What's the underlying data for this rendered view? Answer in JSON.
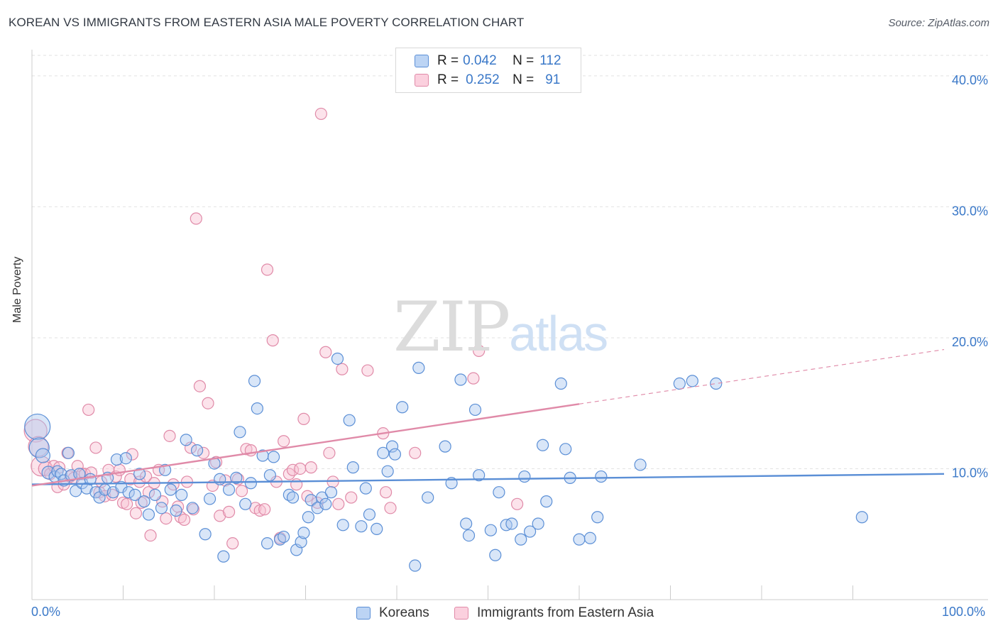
{
  "title": "KOREAN VS IMMIGRANTS FROM EASTERN ASIA MALE POVERTY CORRELATION CHART",
  "source": "Source: ZipAtlas.com",
  "watermark": {
    "zip": "ZIP",
    "atlas": "atlas"
  },
  "legend": {
    "r_label": "R =",
    "n_label": "N =",
    "rows": [
      {
        "r": "0.042",
        "n": "112",
        "fill": "#aac8f0",
        "stroke": "#5b8fd6"
      },
      {
        "r": "0.252",
        "n": "91",
        "fill": "#f8c0d2",
        "stroke": "#e08aa8"
      }
    ]
  },
  "bottom_legend": [
    "Koreans",
    "Immigrants from Eastern Asia"
  ],
  "chart_data": {
    "type": "scatter",
    "title": "KOREAN VS IMMIGRANTS FROM EASTERN ASIA MALE POVERTY CORRELATION CHART",
    "xlabel": "",
    "ylabel": "Male Poverty",
    "xlim": [
      0,
      100
    ],
    "ylim": [
      0,
      42
    ],
    "x_tick_labels": [
      "0.0%",
      "100.0%"
    ],
    "y_ticks": [
      10,
      20,
      30,
      40
    ],
    "y_tick_labels": [
      "10.0%",
      "20.0%",
      "30.0%",
      "40.0%"
    ],
    "grid": true,
    "legend_position": "top-center",
    "series": [
      {
        "name": "Koreans",
        "color": "#5b8fd6",
        "fill": "#aac8f0",
        "r": 0.042,
        "n": 112,
        "trend": {
          "x0": 0,
          "y0": 8.8,
          "x1": 100,
          "y1": 9.6,
          "dashed_from": 100
        },
        "points": [
          [
            0.6,
            13.2,
            18
          ],
          [
            0.8,
            11.6,
            14
          ],
          [
            1.2,
            11.0,
            10
          ],
          [
            1.8,
            9.7,
            9
          ],
          [
            2.5,
            9.4,
            8
          ],
          [
            2.8,
            9.8,
            8
          ],
          [
            3.2,
            9.6,
            8
          ],
          [
            3.5,
            9.1,
            8
          ],
          [
            4.0,
            11.2,
            8
          ],
          [
            4.3,
            9.5,
            8
          ],
          [
            4.8,
            8.3,
            8
          ],
          [
            5.2,
            9.6,
            8
          ],
          [
            5.5,
            8.9,
            8
          ],
          [
            6.0,
            8.5,
            8
          ],
          [
            6.4,
            9.2,
            8
          ],
          [
            7.0,
            8.2,
            8
          ],
          [
            7.4,
            7.8,
            8
          ],
          [
            8.0,
            8.4,
            8
          ],
          [
            8.3,
            9.3,
            8
          ],
          [
            8.9,
            8.2,
            8
          ],
          [
            9.3,
            10.7,
            8
          ],
          [
            9.8,
            8.6,
            8
          ],
          [
            10.3,
            10.8,
            8
          ],
          [
            10.6,
            8.2,
            8
          ],
          [
            11.3,
            8.0,
            8
          ],
          [
            11.8,
            9.6,
            8
          ],
          [
            12.3,
            7.5,
            8
          ],
          [
            12.8,
            6.5,
            8
          ],
          [
            13.5,
            8.0,
            8
          ],
          [
            14.2,
            7.0,
            8
          ],
          [
            14.6,
            9.9,
            8
          ],
          [
            15.2,
            8.4,
            8
          ],
          [
            15.8,
            6.8,
            8
          ],
          [
            16.4,
            8.0,
            8
          ],
          [
            16.9,
            12.2,
            8
          ],
          [
            17.6,
            7.0,
            8
          ],
          [
            18.1,
            11.4,
            8
          ],
          [
            19.0,
            5.0,
            8
          ],
          [
            19.5,
            7.7,
            8
          ],
          [
            20.0,
            10.4,
            8
          ],
          [
            20.6,
            9.2,
            8
          ],
          [
            21.0,
            3.3,
            8
          ],
          [
            21.6,
            8.4,
            8
          ],
          [
            22.4,
            9.3,
            8
          ],
          [
            22.8,
            12.8,
            8
          ],
          [
            23.4,
            7.3,
            8
          ],
          [
            24.0,
            8.9,
            8
          ],
          [
            24.4,
            16.7,
            8
          ],
          [
            24.7,
            14.6,
            8
          ],
          [
            25.3,
            11.0,
            8
          ],
          [
            25.8,
            4.3,
            8
          ],
          [
            26.1,
            9.5,
            8
          ],
          [
            26.5,
            10.9,
            8
          ],
          [
            27.2,
            4.6,
            8
          ],
          [
            27.6,
            4.8,
            8
          ],
          [
            28.2,
            8.0,
            8
          ],
          [
            28.6,
            7.8,
            8
          ],
          [
            29.0,
            3.8,
            8
          ],
          [
            29.5,
            4.4,
            8
          ],
          [
            29.8,
            5.1,
            8
          ],
          [
            30.3,
            6.3,
            8
          ],
          [
            30.6,
            7.6,
            8
          ],
          [
            31.3,
            7.0,
            8
          ],
          [
            31.8,
            7.8,
            8
          ],
          [
            32.2,
            7.3,
            8
          ],
          [
            32.8,
            8.2,
            8
          ],
          [
            33.5,
            18.4,
            8
          ],
          [
            34.1,
            5.7,
            8
          ],
          [
            34.8,
            13.7,
            8
          ],
          [
            35.2,
            10.1,
            8
          ],
          [
            36.1,
            5.6,
            8
          ],
          [
            36.6,
            8.5,
            8
          ],
          [
            37.0,
            6.5,
            8
          ],
          [
            37.8,
            5.4,
            8
          ],
          [
            38.5,
            11.2,
            8
          ],
          [
            39.0,
            9.8,
            8
          ],
          [
            39.5,
            11.7,
            8
          ],
          [
            39.8,
            11.1,
            8
          ],
          [
            40.6,
            14.7,
            8
          ],
          [
            42.0,
            2.6,
            8
          ],
          [
            42.4,
            17.7,
            8
          ],
          [
            43.4,
            7.8,
            8
          ],
          [
            45.3,
            11.7,
            8
          ],
          [
            46.0,
            8.9,
            8
          ],
          [
            47.0,
            16.8,
            8
          ],
          [
            47.6,
            5.8,
            8
          ],
          [
            47.9,
            4.9,
            8
          ],
          [
            48.6,
            14.5,
            8
          ],
          [
            49.0,
            9.5,
            8
          ],
          [
            50.3,
            5.3,
            8
          ],
          [
            50.8,
            3.4,
            8
          ],
          [
            51.2,
            8.2,
            8
          ],
          [
            52.0,
            5.7,
            8
          ],
          [
            52.6,
            5.8,
            8
          ],
          [
            53.6,
            4.6,
            8
          ],
          [
            54.0,
            9.4,
            8
          ],
          [
            54.6,
            5.2,
            8
          ],
          [
            55.5,
            5.8,
            8
          ],
          [
            56.0,
            11.8,
            8
          ],
          [
            56.4,
            7.5,
            8
          ],
          [
            58.0,
            16.5,
            8
          ],
          [
            58.5,
            11.5,
            8
          ],
          [
            59.0,
            9.3,
            8
          ],
          [
            60.0,
            4.6,
            8
          ],
          [
            61.2,
            4.7,
            8
          ],
          [
            62.0,
            6.3,
            8
          ],
          [
            62.4,
            9.4,
            8
          ],
          [
            66.7,
            10.3,
            8
          ],
          [
            71.0,
            16.5,
            8
          ],
          [
            72.4,
            16.7,
            8
          ],
          [
            75.0,
            16.5,
            8
          ],
          [
            91.0,
            6.3,
            8
          ]
        ]
      },
      {
        "name": "Immigrants from Eastern Asia",
        "color": "#e08aa8",
        "fill": "#f8c0d2",
        "r": 0.252,
        "n": 91,
        "trend": {
          "x0": 0,
          "y0": 8.7,
          "x1": 100,
          "y1": 19.1,
          "dashed_from": 60
        },
        "points": [
          [
            0.4,
            12.9,
            16
          ],
          [
            0.7,
            11.7,
            14
          ],
          [
            1.0,
            10.2,
            14
          ],
          [
            1.5,
            10.0,
            10
          ],
          [
            2.0,
            9.6,
            8
          ],
          [
            2.4,
            10.2,
            8
          ],
          [
            2.8,
            8.6,
            8
          ],
          [
            3.0,
            10.1,
            8
          ],
          [
            3.5,
            8.8,
            8
          ],
          [
            3.9,
            11.2,
            8
          ],
          [
            4.2,
            9.4,
            8
          ],
          [
            4.6,
            9.3,
            8
          ],
          [
            5.0,
            10.2,
            8
          ],
          [
            5.5,
            9.6,
            8
          ],
          [
            5.8,
            9.6,
            8
          ],
          [
            6.2,
            14.5,
            8
          ],
          [
            6.5,
            9.7,
            8
          ],
          [
            7.0,
            11.6,
            8
          ],
          [
            7.4,
            8.2,
            8
          ],
          [
            7.6,
            9.0,
            8
          ],
          [
            8.0,
            7.9,
            8
          ],
          [
            8.4,
            9.9,
            8
          ],
          [
            8.8,
            8.0,
            8
          ],
          [
            9.2,
            9.4,
            8
          ],
          [
            9.6,
            9.9,
            8
          ],
          [
            10.0,
            7.4,
            8
          ],
          [
            10.4,
            7.3,
            8
          ],
          [
            10.8,
            9.2,
            8
          ],
          [
            11.0,
            11.1,
            8
          ],
          [
            11.4,
            6.6,
            8
          ],
          [
            11.8,
            9.0,
            8
          ],
          [
            12.0,
            7.4,
            8
          ],
          [
            12.5,
            9.4,
            8
          ],
          [
            12.8,
            8.2,
            8
          ],
          [
            13.0,
            4.9,
            8
          ],
          [
            13.4,
            8.9,
            8
          ],
          [
            13.9,
            9.9,
            8
          ],
          [
            14.3,
            7.5,
            8
          ],
          [
            14.7,
            6.2,
            8
          ],
          [
            15.1,
            12.5,
            8
          ],
          [
            15.5,
            8.8,
            8
          ],
          [
            16.0,
            7.1,
            8
          ],
          [
            16.3,
            6.3,
            8
          ],
          [
            16.7,
            6.1,
            8
          ],
          [
            17.0,
            9.0,
            8
          ],
          [
            17.4,
            11.6,
            8
          ],
          [
            17.7,
            6.9,
            8
          ],
          [
            18.0,
            29.1,
            8
          ],
          [
            18.4,
            16.3,
            8
          ],
          [
            18.8,
            11.2,
            8
          ],
          [
            19.3,
            15.0,
            8
          ],
          [
            19.8,
            8.7,
            8
          ],
          [
            20.2,
            10.5,
            8
          ],
          [
            20.6,
            6.4,
            8
          ],
          [
            21.2,
            9.1,
            8
          ],
          [
            21.6,
            6.7,
            8
          ],
          [
            22.0,
            4.3,
            8
          ],
          [
            22.6,
            9.2,
            8
          ],
          [
            23.0,
            8.3,
            8
          ],
          [
            23.5,
            11.5,
            8
          ],
          [
            24.0,
            11.4,
            8
          ],
          [
            24.5,
            7.0,
            8
          ],
          [
            25.0,
            6.8,
            8
          ],
          [
            25.5,
            6.9,
            8
          ],
          [
            25.8,
            25.2,
            8
          ],
          [
            26.4,
            19.8,
            8
          ],
          [
            26.8,
            9.0,
            8
          ],
          [
            27.2,
            4.7,
            8
          ],
          [
            27.6,
            12.1,
            8
          ],
          [
            28.2,
            9.6,
            8
          ],
          [
            28.6,
            9.9,
            8
          ],
          [
            29.0,
            8.8,
            8
          ],
          [
            29.4,
            10.0,
            8
          ],
          [
            29.8,
            13.8,
            8
          ],
          [
            30.2,
            7.9,
            8
          ],
          [
            30.6,
            10.1,
            8
          ],
          [
            31.3,
            7.4,
            8
          ],
          [
            31.7,
            37.1,
            8
          ],
          [
            32.2,
            18.9,
            8
          ],
          [
            32.6,
            11.2,
            8
          ],
          [
            33.0,
            9.0,
            8
          ],
          [
            33.6,
            7.3,
            8
          ],
          [
            34.0,
            17.6,
            8
          ],
          [
            35.0,
            7.8,
            8
          ],
          [
            36.8,
            17.5,
            8
          ],
          [
            38.5,
            12.7,
            8
          ],
          [
            38.8,
            8.2,
            8
          ],
          [
            39.3,
            7.0,
            8
          ],
          [
            42.0,
            11.2,
            8
          ],
          [
            48.4,
            16.9,
            8
          ],
          [
            49.0,
            19.0,
            8
          ],
          [
            53.2,
            7.3,
            8
          ]
        ]
      }
    ]
  }
}
